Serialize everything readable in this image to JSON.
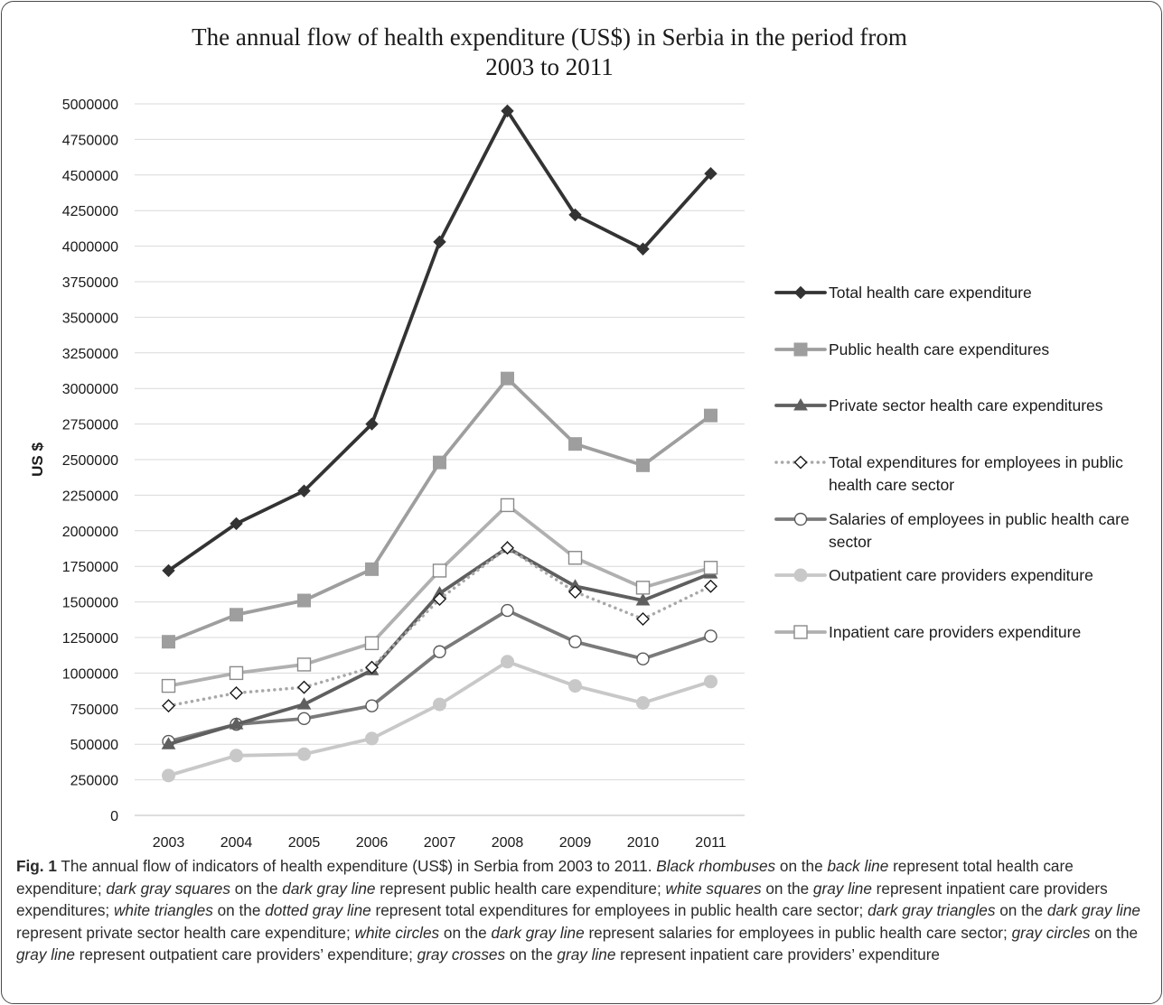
{
  "chart_data": {
    "type": "line",
    "title_lines": [
      "The annual flow of health expenditure (US$) in Serbia in the period from",
      "2003 to 2011"
    ],
    "ylabel": "US $",
    "xlabel": "",
    "categories": [
      "2003",
      "2004",
      "2005",
      "2006",
      "2007",
      "2008",
      "2009",
      "2010",
      "2011"
    ],
    "ylim": [
      0,
      5000000
    ],
    "yticks": [
      "0",
      "250000",
      "500000",
      "750000",
      "1000000",
      "1250000",
      "1500000",
      "1750000",
      "2000000",
      "2250000",
      "2500000",
      "2750000",
      "3000000",
      "3250000",
      "3500000",
      "3750000",
      "4000000",
      "4250000",
      "4500000",
      "4750000",
      "5000000"
    ],
    "grid": "horizontal",
    "legend_position": "right",
    "series": [
      {
        "name_lines": [
          "Total health care expenditure"
        ],
        "color": "#333333",
        "marker": "diamond-filled",
        "dash": "solid",
        "values": [
          1720000,
          2050000,
          2280000,
          2750000,
          4030000,
          4950000,
          4220000,
          3980000,
          4510000
        ]
      },
      {
        "name_lines": [
          "Public health care expenditures"
        ],
        "color": "#9e9e9e",
        "marker": "square-filled",
        "dash": "solid",
        "values": [
          1220000,
          1410000,
          1510000,
          1730000,
          2480000,
          3070000,
          2610000,
          2460000,
          2810000
        ]
      },
      {
        "name_lines": [
          "Private sector health care expenditures"
        ],
        "color": "#5f5f5f",
        "marker": "triangle-filled",
        "dash": "solid",
        "values": [
          500000,
          640000,
          780000,
          1020000,
          1560000,
          1880000,
          1610000,
          1510000,
          1700000
        ]
      },
      {
        "name_lines": [
          "Total expenditures for employees in public",
          "health care sector"
        ],
        "color": "#a8a8a8",
        "marker": "diamond-open",
        "dash": "dotted",
        "values": [
          770000,
          860000,
          900000,
          1040000,
          1520000,
          1880000,
          1570000,
          1380000,
          1610000
        ]
      },
      {
        "name_lines": [
          "Salaries of employees in public health care",
          "sector"
        ],
        "color": "#7a7a7a",
        "marker": "circle-open",
        "dash": "solid",
        "values": [
          520000,
          640000,
          680000,
          770000,
          1150000,
          1440000,
          1220000,
          1100000,
          1260000
        ]
      },
      {
        "name_lines": [
          "Outpatient care providers expenditure"
        ],
        "color": "#c8c8c8",
        "marker": "circle-filled",
        "dash": "solid",
        "values": [
          280000,
          420000,
          430000,
          540000,
          780000,
          1080000,
          910000,
          790000,
          940000
        ]
      },
      {
        "name_lines": [
          "Inpatient care providers expenditure"
        ],
        "color": "#b0b0b0",
        "marker": "square-open",
        "dash": "solid",
        "values": [
          910000,
          1000000,
          1060000,
          1210000,
          1720000,
          2180000,
          1810000,
          1600000,
          1740000
        ]
      }
    ]
  },
  "caption": {
    "label": "Fig. 1",
    "parts": [
      {
        "t": " The annual flow of indicators of health expenditure (US$) in Serbia from 2003 to 2011. ",
        "i": false
      },
      {
        "t": "Black rhombuses",
        "i": true
      },
      {
        "t": " on the ",
        "i": false
      },
      {
        "t": "back line",
        "i": true
      },
      {
        "t": " represent total health care expenditure; ",
        "i": false
      },
      {
        "t": "dark gray squares",
        "i": true
      },
      {
        "t": " on the ",
        "i": false
      },
      {
        "t": "dark gray line",
        "i": true
      },
      {
        "t": " represent public health care expenditure; ",
        "i": false
      },
      {
        "t": "white squares",
        "i": true
      },
      {
        "t": " on the ",
        "i": false
      },
      {
        "t": "gray line",
        "i": true
      },
      {
        "t": " represent inpatient care providers expenditures; ",
        "i": false
      },
      {
        "t": "white triangles",
        "i": true
      },
      {
        "t": " on the ",
        "i": false
      },
      {
        "t": "dotted gray line",
        "i": true
      },
      {
        "t": " represent total expenditures for employees in public health care sector; ",
        "i": false
      },
      {
        "t": "dark gray triangles",
        "i": true
      },
      {
        "t": " on the ",
        "i": false
      },
      {
        "t": "dark gray line",
        "i": true
      },
      {
        "t": " represent private sector health care expenditure; ",
        "i": false
      },
      {
        "t": "white circles",
        "i": true
      },
      {
        "t": " on the ",
        "i": false
      },
      {
        "t": "dark gray line",
        "i": true
      },
      {
        "t": " represent salaries for employees in public health care sector; ",
        "i": false
      },
      {
        "t": "gray circles",
        "i": true
      },
      {
        "t": " on the ",
        "i": false
      },
      {
        "t": "gray line",
        "i": true
      },
      {
        "t": " represent outpatient care providers’ expenditure; ",
        "i": false
      },
      {
        "t": "gray crosses",
        "i": true
      },
      {
        "t": " on the ",
        "i": false
      },
      {
        "t": "gray line",
        "i": true
      },
      {
        "t": " represent inpatient care providers’ expenditure",
        "i": false
      }
    ]
  }
}
